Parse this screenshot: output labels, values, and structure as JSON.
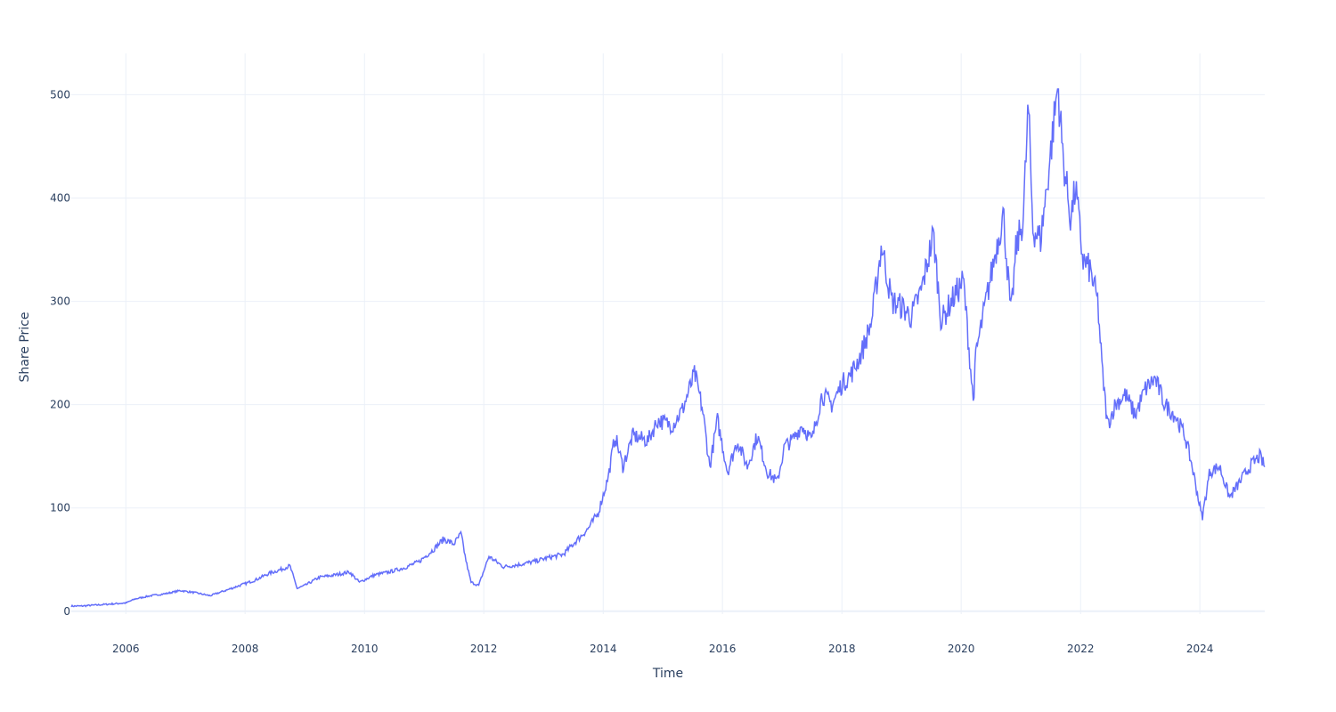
{
  "chart_data": {
    "type": "line",
    "title": "",
    "xlabel": "Time",
    "ylabel": "Share Price",
    "x_ticks": [
      "2006",
      "2008",
      "2010",
      "2012",
      "2014",
      "2016",
      "2018",
      "2020",
      "2022",
      "2024"
    ],
    "y_ticks": [
      "0",
      "100",
      "200",
      "300",
      "400",
      "500"
    ],
    "xlim": [
      "2005-02-01",
      "2025-02-01"
    ],
    "ylim": [
      -20,
      540
    ],
    "grid": true,
    "colors": {
      "line": "#636efa",
      "grid": "#ebf0f8",
      "text": "#2a3f5f"
    },
    "series": [
      {
        "x": [
          "2005-02-01",
          "2005-04-01",
          "2005-07-01",
          "2005-10-01",
          "2006-01-01",
          "2006-03-01",
          "2006-06-01",
          "2006-09-01",
          "2006-12-01",
          "2007-03-01",
          "2007-06-01",
          "2007-09-01",
          "2007-12-01",
          "2008-03-01",
          "2008-06-01",
          "2008-08-01",
          "2008-10-01",
          "2008-11-15",
          "2009-01-01",
          "2009-04-01",
          "2009-07-01",
          "2009-10-01",
          "2009-12-01",
          "2010-03-01",
          "2010-06-01",
          "2010-09-01",
          "2010-12-01",
          "2011-03-01",
          "2011-05-01",
          "2011-07-01",
          "2011-08-15",
          "2011-09-15",
          "2011-10-15",
          "2011-12-01",
          "2012-02-01",
          "2012-05-01",
          "2012-08-01",
          "2012-11-01",
          "2013-02-01",
          "2013-05-01",
          "2013-08-01",
          "2013-10-01",
          "2013-12-01",
          "2014-02-01",
          "2014-03-15",
          "2014-05-01",
          "2014-07-01",
          "2014-10-01",
          "2014-12-01",
          "2015-03-01",
          "2015-05-01",
          "2015-07-15",
          "2015-09-01",
          "2015-10-15",
          "2015-12-01",
          "2016-02-01",
          "2016-04-01",
          "2016-06-01",
          "2016-08-01",
          "2016-10-01",
          "2016-12-01",
          "2017-01-15",
          "2017-03-01",
          "2017-05-01",
          "2017-07-01",
          "2017-09-01",
          "2017-11-01",
          "2018-01-01",
          "2018-03-01",
          "2018-05-01",
          "2018-07-01",
          "2018-09-01",
          "2018-11-01",
          "2019-01-01",
          "2019-03-01",
          "2019-05-01",
          "2019-07-15",
          "2019-09-01",
          "2019-11-01",
          "2020-01-15",
          "2020-03-15",
          "2020-04-01",
          "2020-06-01",
          "2020-08-01",
          "2020-09-15",
          "2020-11-01",
          "2020-12-01",
          "2021-01-15",
          "2021-02-15",
          "2021-03-15",
          "2021-05-01",
          "2021-06-15",
          "2021-08-15",
          "2021-09-15",
          "2021-11-01",
          "2021-12-01",
          "2022-01-15",
          "2022-03-01",
          "2022-04-15",
          "2022-05-15",
          "2022-06-15",
          "2022-08-01",
          "2022-10-01",
          "2022-12-01",
          "2023-02-01",
          "2023-04-01",
          "2023-06-01",
          "2023-08-01",
          "2023-10-01",
          "2023-11-15",
          "2024-01-15",
          "2024-03-01",
          "2024-05-01",
          "2024-07-01",
          "2024-09-01",
          "2024-11-01",
          "2025-01-01",
          "2025-02-01"
        ],
        "y": [
          5,
          5,
          6,
          7,
          8,
          12,
          15,
          17,
          20,
          18,
          15,
          20,
          25,
          30,
          37,
          40,
          44,
          22,
          25,
          33,
          35,
          38,
          28,
          35,
          38,
          42,
          48,
          60,
          70,
          65,
          75,
          48,
          28,
          25,
          53,
          43,
          45,
          48,
          52,
          55,
          70,
          80,
          95,
          130,
          170,
          140,
          170,
          165,
          185,
          180,
          195,
          230,
          195,
          140,
          185,
          135,
          165,
          140,
          170,
          135,
          125,
          160,
          165,
          180,
          165,
          210,
          200,
          220,
          230,
          250,
          280,
          355,
          300,
          295,
          285,
          310,
          365,
          280,
          300,
          320,
          203,
          250,
          300,
          350,
          385,
          285,
          350,
          380,
          490,
          370,
          360,
          420,
          510,
          440,
          380,
          410,
          340,
          330,
          300,
          230,
          180,
          200,
          210,
          190,
          215,
          225,
          200,
          190,
          170,
          140,
          90,
          135,
          140,
          110,
          125,
          140,
          150,
          140
        ]
      }
    ]
  }
}
